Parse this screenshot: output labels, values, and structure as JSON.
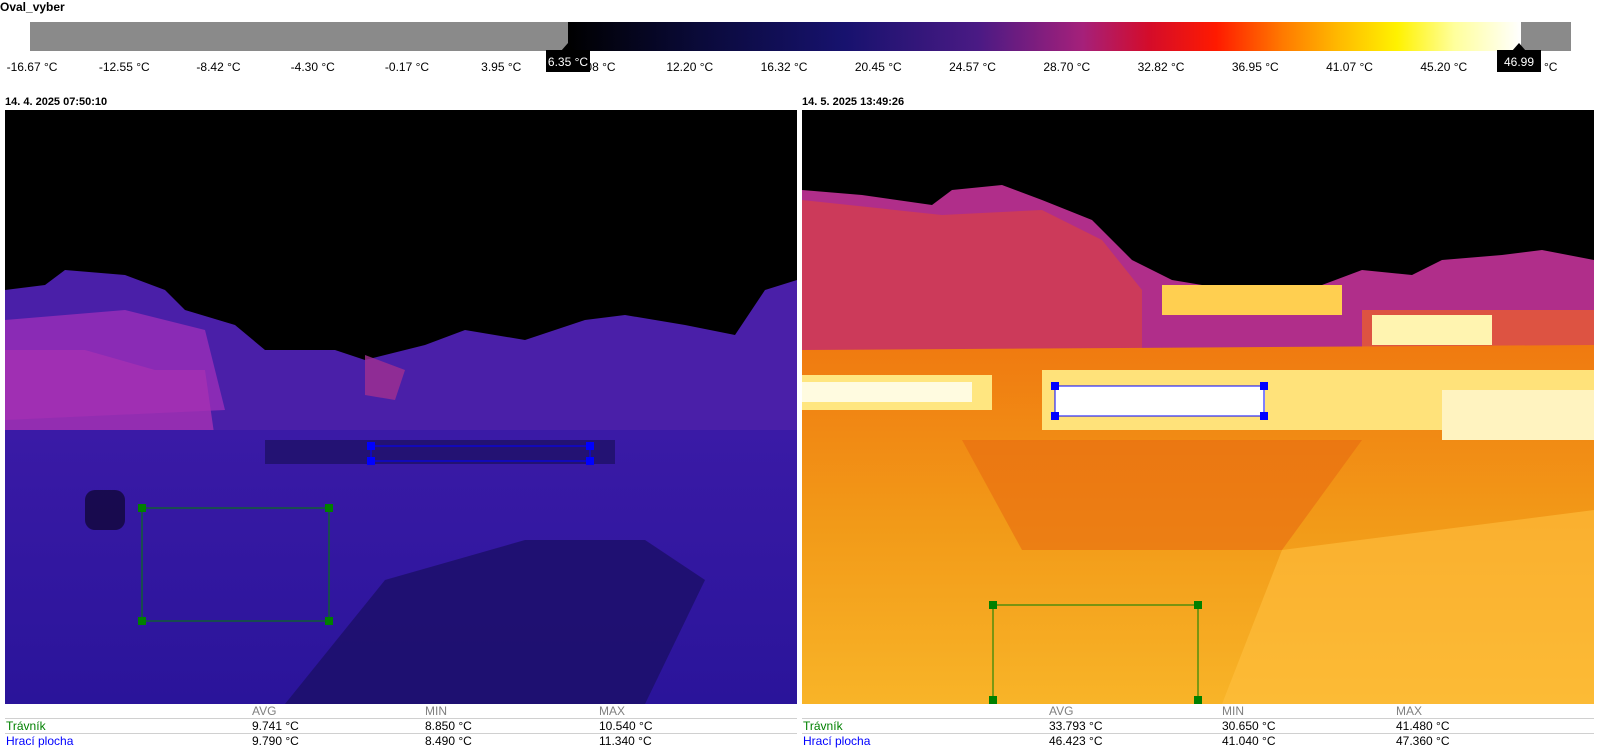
{
  "title": "Oval_vyber",
  "color_scale": {
    "ticks": [
      "-16.67 °C",
      "-12.55 °C",
      "-8.42 °C",
      "-4.30 °C",
      "-0.17 °C",
      "3.95 °C",
      "8.08 °C",
      "12.20 °C",
      "16.32 °C",
      "20.45 °C",
      "24.57 °C",
      "28.70 °C",
      "32.82 °C",
      "36.95 °C",
      "41.07 °C",
      "45.20 °C",
      "49.32 °C"
    ],
    "range_min_label": "6.35 °C",
    "range_max_label": "46.99 °C",
    "range_min": 6.35,
    "range_max": 46.99,
    "scale_min": -16.67,
    "scale_max": 49.32
  },
  "panels": [
    {
      "timestamp": "14. 4. 2025 07:50:10",
      "stats": {
        "headers": {
          "avg": "AVG",
          "min": "MIN",
          "max": "MAX"
        },
        "rows": [
          {
            "name": "Trávník",
            "color": "#008000",
            "avg": "9.741 °C",
            "min": "8.850 °C",
            "max": "10.540 °C"
          },
          {
            "name": "Hrací plocha",
            "color": "#0000ff",
            "avg": "9.790 °C",
            "min": "8.490 °C",
            "max": "11.340 °C"
          }
        ]
      }
    },
    {
      "timestamp": "14. 5. 2025 13:49:26",
      "stats": {
        "headers": {
          "avg": "AVG",
          "min": "MIN",
          "max": "MAX"
        },
        "rows": [
          {
            "name": "Trávník",
            "color": "#008000",
            "avg": "33.793 °C",
            "min": "30.650 °C",
            "max": "41.480 °C"
          },
          {
            "name": "Hrací plocha",
            "color": "#0000ff",
            "avg": "46.423 °C",
            "min": "41.040 °C",
            "max": "47.360 °C"
          }
        ]
      }
    }
  ],
  "colors": {
    "roi_green": "#008000",
    "roi_blue": "#0000ff"
  }
}
